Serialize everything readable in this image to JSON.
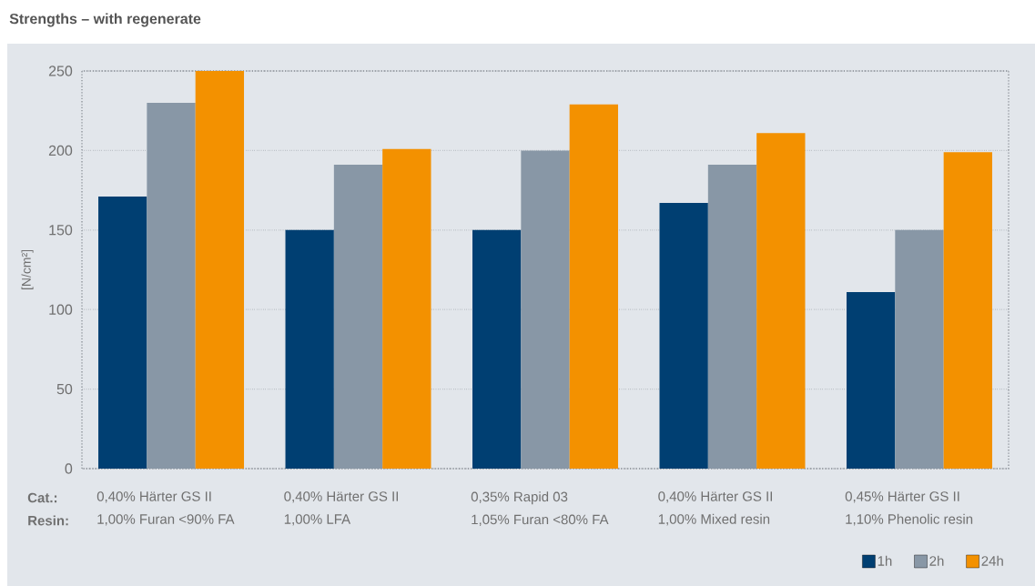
{
  "chart_data": {
    "type": "bar",
    "title": "Strengths – with regenerate",
    "ylabel": "[N/cm²]",
    "categories": [
      "0,40% Härter GS II\n1,00% Furan <90% FA",
      "0,40% Härter GS II\n1,00% LFA",
      "0,35% Rapid 03\n1,05% Furan <80% FA",
      "0,40% Härter GS II\n1,00% Mixed resin",
      "0,45% Härter GS II\n1,10% Phenolic resin"
    ],
    "series": [
      {
        "name": "1h",
        "color": "#003f72",
        "values": [
          171,
          150,
          150,
          167,
          111
        ]
      },
      {
        "name": "2h",
        "color": "#8897a6",
        "values": [
          230,
          191,
          200,
          191,
          150
        ]
      },
      {
        "name": "24h",
        "color": "#f39100",
        "values": [
          250,
          201,
          229,
          211,
          199
        ]
      }
    ],
    "ylim": [
      0,
      250
    ],
    "yticks": [
      0,
      50,
      100,
      150,
      200,
      250
    ],
    "grid": "y",
    "legend": "bottom right",
    "annotations": [
      "Cat.:",
      "Resin:"
    ]
  }
}
